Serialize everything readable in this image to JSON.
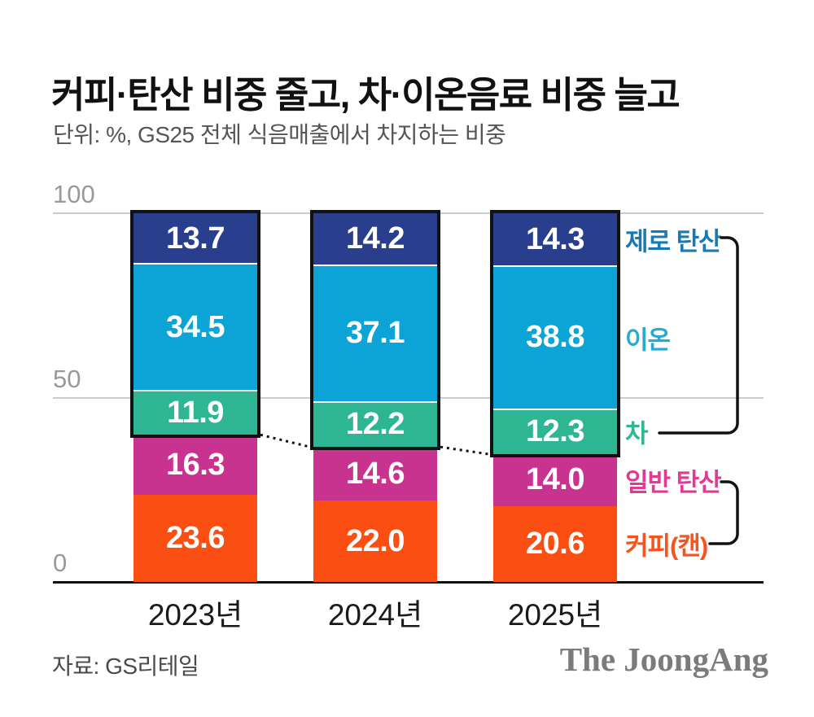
{
  "title": "커피·탄산 비중 줄고, 차·이온음료 비중 늘고",
  "subtitle": "단위: %, GS25 전체 식음매출에서 차지하는 비중",
  "footer": {
    "source": "자료: GS리테일",
    "logo": "The JoongAng"
  },
  "chart_data": {
    "type": "bar",
    "stacked": true,
    "title": "커피·탄산 비중 줄고, 차·이온음료 비중 늘고",
    "subtitle": "단위: %, GS25 전체 식음매출에서 차지하는 비중",
    "categories": [
      "2023년",
      "2024년",
      "2025년"
    ],
    "series": [
      {
        "name": "커피(캔)",
        "color": "#fa4e12",
        "label_color": "#f8531f",
        "outlined": false,
        "values": [
          23.6,
          22.0,
          20.6
        ]
      },
      {
        "name": "일반 탄산",
        "color": "#c7338f",
        "label_color": "#e23a90",
        "outlined": false,
        "values": [
          16.3,
          14.6,
          14.0
        ]
      },
      {
        "name": "차",
        "color": "#2eb694",
        "label_color": "#2fb795",
        "outlined": true,
        "values": [
          11.9,
          12.2,
          12.3
        ]
      },
      {
        "name": "이온",
        "color": "#0ca4d7",
        "label_color": "#2ba9d1",
        "outlined": true,
        "values": [
          34.5,
          37.1,
          38.8
        ]
      },
      {
        "name": "제로 탄산",
        "color": "#293f8e",
        "label_color": "#177ab5",
        "outlined": true,
        "values": [
          13.7,
          14.2,
          14.3
        ]
      }
    ],
    "ylim": [
      0,
      100
    ],
    "yticks": [
      0,
      50,
      100
    ],
    "grid": "horizontal",
    "legend_position": "right",
    "value_label_color": "#ffffff",
    "outline_color": "#111111",
    "gridline_color": "#cccccc",
    "axis_color": "#111111",
    "tick_label_color": "#999999"
  }
}
